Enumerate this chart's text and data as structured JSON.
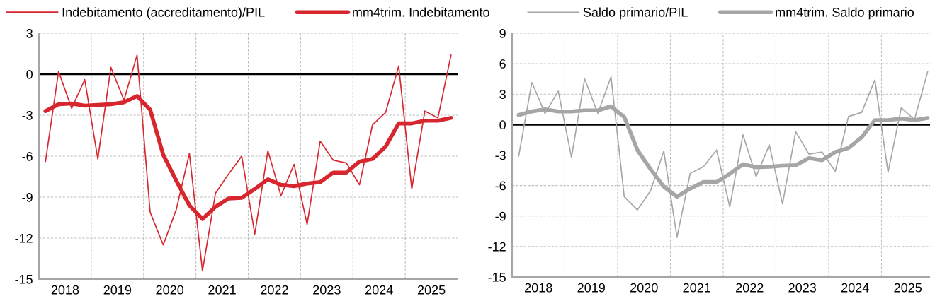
{
  "chart_data": [
    {
      "type": "line",
      "legend": "top",
      "grid": true,
      "marker": "none",
      "line_style": "solid",
      "x": [
        2018.125,
        2018.375,
        2018.625,
        2018.875,
        2019.125,
        2019.375,
        2019.625,
        2019.875,
        2020.125,
        2020.375,
        2020.625,
        2020.875,
        2021.125,
        2021.375,
        2021.625,
        2021.875,
        2022.125,
        2022.375,
        2022.625,
        2022.875,
        2023.125,
        2023.375,
        2023.625,
        2023.875,
        2024.125,
        2024.375,
        2024.625,
        2024.875,
        2025.125,
        2025.375,
        2025.625,
        2025.875
      ],
      "xlim": [
        2018,
        2026
      ],
      "xticks": [
        {
          "value": 2018.5,
          "label": "2018"
        },
        {
          "value": 2019,
          "label": null
        },
        {
          "value": 2019.5,
          "label": "2019"
        },
        {
          "value": 2020,
          "label": null
        },
        {
          "value": 2020.5,
          "label": "2020"
        },
        {
          "value": 2021,
          "label": null
        },
        {
          "value": 2021.5,
          "label": "2021"
        },
        {
          "value": 2022,
          "label": null
        },
        {
          "value": 2022.5,
          "label": "2022"
        },
        {
          "value": 2023,
          "label": null
        },
        {
          "value": 2023.5,
          "label": "2023"
        },
        {
          "value": 2024,
          "label": null
        },
        {
          "value": 2024.5,
          "label": "2024"
        },
        {
          "value": 2025,
          "label": null
        },
        {
          "value": 2025.5,
          "label": "2025"
        }
      ],
      "ylim": [
        -15,
        3
      ],
      "yticks": [
        -15,
        -12,
        -9,
        -6,
        -3,
        0,
        3
      ],
      "ref_lines": [
        {
          "axis": "y",
          "value": 0,
          "label": null,
          "color": "#000000"
        }
      ],
      "series": [
        {
          "name": "Indebitamento (accreditamento)/PIL",
          "color": "#d7262e",
          "values": [
            -6.4,
            0.2,
            -2.5,
            -0.4,
            -6.2,
            0.5,
            -1.9,
            1.4,
            -10.1,
            -12.5,
            -9.9,
            -5.8,
            -14.4,
            -8.7,
            -7.3,
            -6.0,
            -11.7,
            -5.6,
            -8.9,
            -6.6,
            -11.0,
            -4.9,
            -6.3,
            -6.5,
            -8.1,
            -3.7,
            -2.8,
            0.6,
            -8.4,
            -2.7,
            -3.2,
            1.4
          ]
        },
        {
          "name": "mm4trim. Indebitamento",
          "color": "#d7262e",
          "values": [
            -2.7,
            -2.2,
            -2.15,
            -2.3,
            -2.25,
            -2.2,
            -2.05,
            -1.6,
            -2.6,
            -5.9,
            -7.8,
            -9.6,
            -10.6,
            -9.7,
            -9.1,
            -9.05,
            -8.4,
            -7.7,
            -8.1,
            -8.2,
            -8.0,
            -7.9,
            -7.2,
            -7.2,
            -6.4,
            -6.2,
            -5.3,
            -3.6,
            -3.6,
            -3.4,
            -3.4,
            -3.2
          ]
        }
      ]
    },
    {
      "type": "line",
      "legend": "top",
      "grid": true,
      "marker": "none",
      "line_style": "solid",
      "x": [
        2018.125,
        2018.375,
        2018.625,
        2018.875,
        2019.125,
        2019.375,
        2019.625,
        2019.875,
        2020.125,
        2020.375,
        2020.625,
        2020.875,
        2021.125,
        2021.375,
        2021.625,
        2021.875,
        2022.125,
        2022.375,
        2022.625,
        2022.875,
        2023.125,
        2023.375,
        2023.625,
        2023.875,
        2024.125,
        2024.375,
        2024.625,
        2024.875,
        2025.125,
        2025.375,
        2025.625,
        2025.875
      ],
      "xlim": [
        2018,
        2025.92
      ],
      "xticks": [
        {
          "value": 2018.5,
          "label": "2018"
        },
        {
          "value": 2019,
          "label": null
        },
        {
          "value": 2019.5,
          "label": "2019"
        },
        {
          "value": 2020,
          "label": null
        },
        {
          "value": 2020.5,
          "label": "2020"
        },
        {
          "value": 2021,
          "label": null
        },
        {
          "value": 2021.5,
          "label": "2021"
        },
        {
          "value": 2022,
          "label": null
        },
        {
          "value": 2022.5,
          "label": "2022"
        },
        {
          "value": 2023,
          "label": null
        },
        {
          "value": 2023.5,
          "label": "2023"
        },
        {
          "value": 2024,
          "label": null
        },
        {
          "value": 2024.5,
          "label": "2024"
        },
        {
          "value": 2025,
          "label": null
        },
        {
          "value": 2025.5,
          "label": "2025"
        }
      ],
      "ylim": [
        -15,
        9
      ],
      "yticks": [
        -15,
        -12,
        -9,
        -6,
        -3,
        0,
        3,
        6,
        9
      ],
      "ref_lines": [
        {
          "axis": "y",
          "value": 0,
          "label": null,
          "color": "#000000"
        }
      ],
      "series": [
        {
          "name": "Saldo primario/PIL",
          "color": "#a6a6a6",
          "values": [
            -3.1,
            4.15,
            1.1,
            3.3,
            -3.2,
            4.5,
            1.1,
            4.7,
            -7.1,
            -8.4,
            -6.5,
            -2.6,
            -11.1,
            -4.8,
            -4.15,
            -2.5,
            -8.1,
            -1.0,
            -5.1,
            -2.0,
            -7.8,
            -0.7,
            -2.9,
            -2.7,
            -4.6,
            0.8,
            1.2,
            4.4,
            -4.7,
            1.65,
            0.5,
            5.2
          ]
        },
        {
          "name": "mm4trim. Saldo primario",
          "color": "#a6a6a6",
          "values": [
            0.95,
            1.3,
            1.5,
            1.3,
            1.3,
            1.4,
            1.4,
            1.8,
            0.75,
            -2.5,
            -4.4,
            -6.1,
            -7.1,
            -6.3,
            -5.65,
            -5.65,
            -4.85,
            -3.9,
            -4.2,
            -4.15,
            -4.05,
            -4.0,
            -3.3,
            -3.5,
            -2.7,
            -2.3,
            -1.25,
            0.45,
            0.45,
            0.6,
            0.45,
            0.65
          ]
        }
      ]
    }
  ]
}
